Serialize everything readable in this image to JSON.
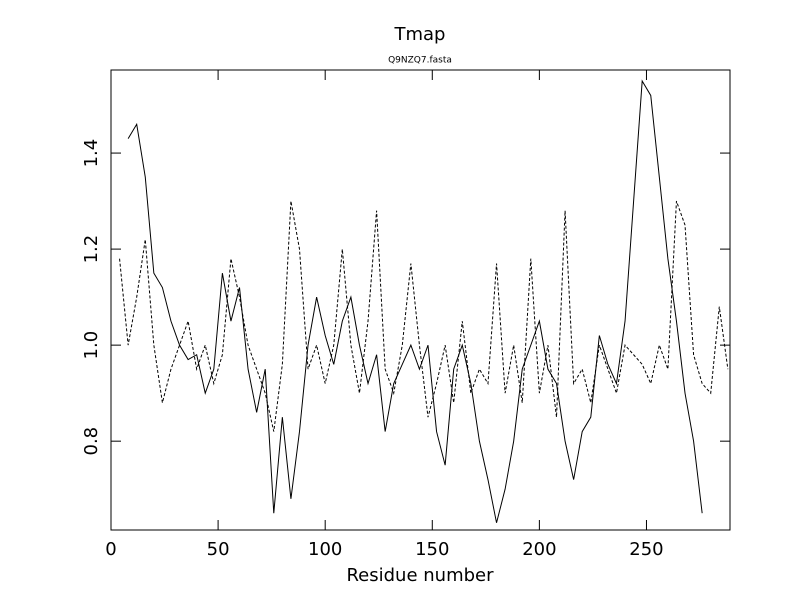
{
  "chart_data": {
    "type": "line",
    "title": "Tmap",
    "subtitle": "Q9NZQ7.fasta",
    "x_label": "Residue number",
    "x": [
      4,
      8,
      12,
      16,
      20,
      24,
      28,
      32,
      36,
      40,
      44,
      48,
      52,
      56,
      60,
      64,
      68,
      72,
      76,
      80,
      84,
      88,
      92,
      96,
      100,
      104,
      108,
      112,
      116,
      120,
      124,
      128,
      132,
      136,
      140,
      144,
      148,
      152,
      156,
      160,
      164,
      168,
      172,
      176,
      180,
      184,
      188,
      192,
      196,
      200,
      204,
      208,
      212,
      216,
      220,
      224,
      228,
      232,
      236,
      240,
      244,
      248,
      252,
      256,
      260,
      264,
      268,
      272,
      276,
      280,
      284,
      288
    ],
    "series": [
      {
        "color": "#000000",
        "dashed": false,
        "values": [
          null,
          1.43,
          1.46,
          1.35,
          1.15,
          1.12,
          1.05,
          1.0,
          0.97,
          0.98,
          0.9,
          0.95,
          1.15,
          1.05,
          1.12,
          0.95,
          0.86,
          0.95,
          0.65,
          0.85,
          0.68,
          0.82,
          1.0,
          1.1,
          1.02,
          0.96,
          1.05,
          1.1,
          1.0,
          0.92,
          0.98,
          0.82,
          0.92,
          0.96,
          1.0,
          0.95,
          1.0,
          0.82,
          0.75,
          0.95,
          1.0,
          0.92,
          0.8,
          0.72,
          0.63,
          0.7,
          0.8,
          0.95,
          1.0,
          1.05,
          0.95,
          0.92,
          0.8,
          0.72,
          0.82,
          0.85,
          1.02,
          0.96,
          0.92,
          1.05,
          1.3,
          1.55,
          1.52,
          1.35,
          1.18,
          1.05,
          0.9,
          0.8,
          0.65,
          null,
          null,
          null
        ]
      },
      {
        "color": "#000000",
        "dashed": true,
        "values": [
          1.18,
          1.0,
          1.1,
          1.22,
          1.0,
          0.88,
          0.95,
          1.0,
          1.05,
          0.95,
          1.0,
          0.92,
          0.98,
          1.18,
          1.1,
          1.0,
          0.95,
          0.9,
          0.82,
          0.96,
          1.3,
          1.2,
          0.95,
          1.0,
          0.92,
          1.0,
          1.2,
          1.0,
          0.9,
          1.05,
          1.28,
          0.95,
          0.9,
          1.0,
          1.17,
          1.0,
          0.85,
          0.92,
          1.0,
          0.88,
          1.05,
          0.9,
          0.95,
          0.92,
          1.17,
          0.9,
          1.0,
          0.88,
          1.18,
          0.9,
          1.0,
          0.85,
          1.28,
          0.92,
          0.95,
          0.88,
          1.0,
          0.95,
          0.9,
          1.0,
          0.98,
          0.96,
          0.92,
          1.0,
          0.95,
          1.3,
          1.25,
          0.98,
          0.92,
          0.9,
          1.08,
          0.95
        ]
      }
    ],
    "xlim": [
      0,
      289
    ],
    "ylim": [
      0.615,
      1.573
    ],
    "xticks": [
      0,
      50,
      100,
      150,
      200,
      250
    ],
    "yticks": [
      0.8,
      {
        "value": 1,
        "label": "1.0"
      },
      1.2,
      1.4
    ]
  }
}
